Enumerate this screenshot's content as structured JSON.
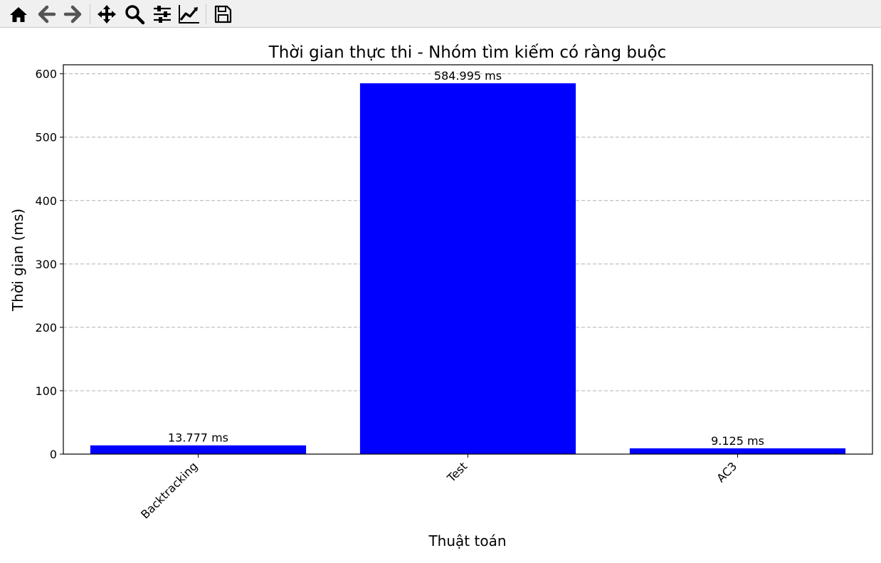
{
  "toolbar": {
    "buttons": [
      {
        "name": "home-icon"
      },
      {
        "name": "back-icon"
      },
      {
        "name": "forward-icon"
      },
      {
        "name": "pan-icon"
      },
      {
        "name": "zoom-icon"
      },
      {
        "name": "configure-subplots-icon"
      },
      {
        "name": "edit-axis-icon"
      },
      {
        "name": "save-icon"
      }
    ]
  },
  "chart_data": {
    "type": "bar",
    "title": "Thời gian thực thi  - Nhóm tìm kiếm có ràng buộc",
    "xlabel": "Thuật toán",
    "ylabel": "Thời gian (ms)",
    "categories": [
      "Backtracking",
      "Test",
      "AC3"
    ],
    "values": [
      13.777,
      584.995,
      9.125
    ],
    "value_labels": [
      "13.777 ms",
      "584.995 ms",
      "9.125 ms"
    ],
    "ylim": [
      0,
      614.24
    ],
    "yticks": [
      0,
      100,
      200,
      300,
      400,
      500,
      600
    ],
    "grid": "y-dashed",
    "bar_color": "#0000ff",
    "grid_color": "#b0b0b0"
  }
}
